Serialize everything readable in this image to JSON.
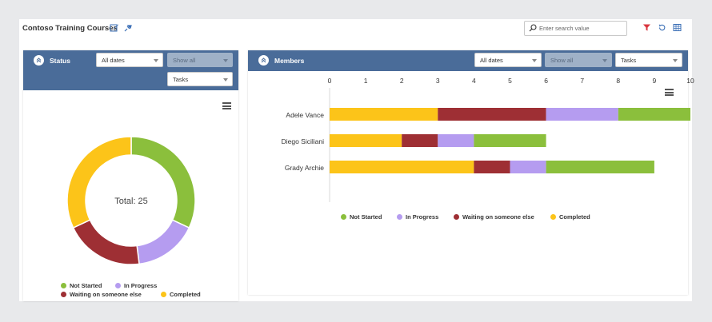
{
  "header": {
    "title": "Contoso Training Courses",
    "search_placeholder": "Enter search value"
  },
  "status_panel": {
    "title": "Status",
    "filters": {
      "dates": "All dates",
      "show": "Show all",
      "type": "Tasks"
    },
    "donut": {
      "center_label": "Total: 25",
      "segments": [
        {
          "name": "Not Started",
          "value": 8,
          "color": "#8bbf3c"
        },
        {
          "name": "In Progress",
          "value": 4,
          "color": "#b59cf0"
        },
        {
          "name": "Waiting on someone else",
          "value": 5,
          "color": "#9e2f34"
        },
        {
          "name": "Completed",
          "value": 8,
          "color": "#fcc419"
        }
      ]
    },
    "legend": [
      {
        "label": "Not Started",
        "color": "#8bbf3c"
      },
      {
        "label": "In Progress",
        "color": "#b59cf0"
      },
      {
        "label": "Waiting on someone else",
        "color": "#9e2f34"
      },
      {
        "label": "Completed",
        "color": "#fcc419"
      }
    ]
  },
  "members_panel": {
    "title": "Members",
    "filters": {
      "dates": "All dates",
      "show": "Show all",
      "type": "Tasks"
    },
    "legend": [
      {
        "label": "Not Started",
        "color": "#8bbf3c"
      },
      {
        "label": "In Progress",
        "color": "#b59cf0"
      },
      {
        "label": "Waiting on someone else",
        "color": "#9e2f34"
      },
      {
        "label": "Completed",
        "color": "#fcc419"
      }
    ]
  },
  "chart_data": {
    "type": "bar",
    "orientation": "horizontal",
    "stacked": true,
    "categories": [
      "Adele Vance",
      "Diego Siciliani",
      "Grady Archie"
    ],
    "xlim": [
      0,
      10
    ],
    "xticks": [
      "0",
      "1",
      "2",
      "3",
      "4",
      "5",
      "6",
      "7",
      "8",
      "9",
      "10"
    ],
    "series": [
      {
        "name": "Completed",
        "color": "#fcc419",
        "values": [
          3,
          2,
          4
        ]
      },
      {
        "name": "Waiting on someone else",
        "color": "#9e2f34",
        "values": [
          3,
          1,
          1
        ]
      },
      {
        "name": "In Progress",
        "color": "#b59cf0",
        "values": [
          2,
          1,
          1
        ]
      },
      {
        "name": "Not Started",
        "color": "#8bbf3c",
        "values": [
          2,
          2,
          3
        ]
      }
    ],
    "legend_position": "bottom",
    "grid": false
  }
}
